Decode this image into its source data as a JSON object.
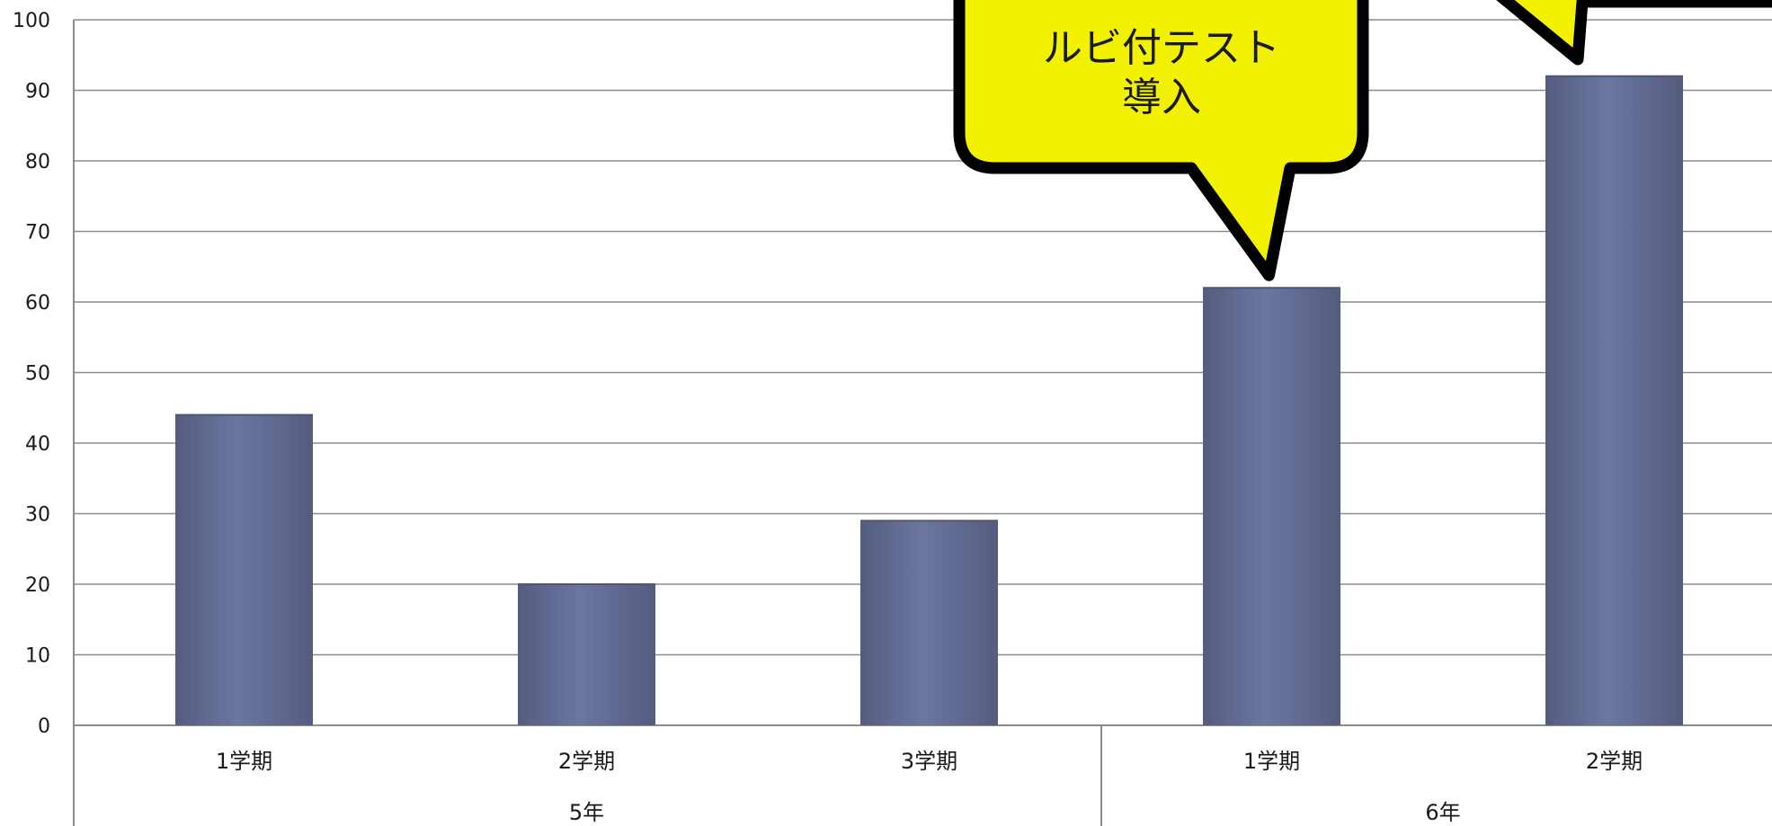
{
  "chart_data": {
    "type": "bar",
    "title": "",
    "xlabel": "",
    "ylabel": "",
    "ylim": [
      0,
      100
    ],
    "yticks": [
      0,
      10,
      20,
      30,
      40,
      50,
      60,
      70,
      80,
      90,
      100
    ],
    "groups": [
      {
        "label": "5年",
        "categories": [
          "1学期",
          "2学期",
          "3学期"
        ]
      },
      {
        "label": "6年",
        "categories": [
          "1学期",
          "2学期"
        ]
      }
    ],
    "categories": [
      "1学期",
      "2学期",
      "3学期",
      "1学期",
      "2学期"
    ],
    "values": [
      44,
      20,
      29,
      62,
      92
    ],
    "grid": true,
    "bar_color": "#66709a",
    "annotations": [
      {
        "text_lines": [
          "ルビ付テスト",
          "導入"
        ],
        "points_to": "6年 1学期",
        "fill": "#f2f200"
      }
    ]
  }
}
